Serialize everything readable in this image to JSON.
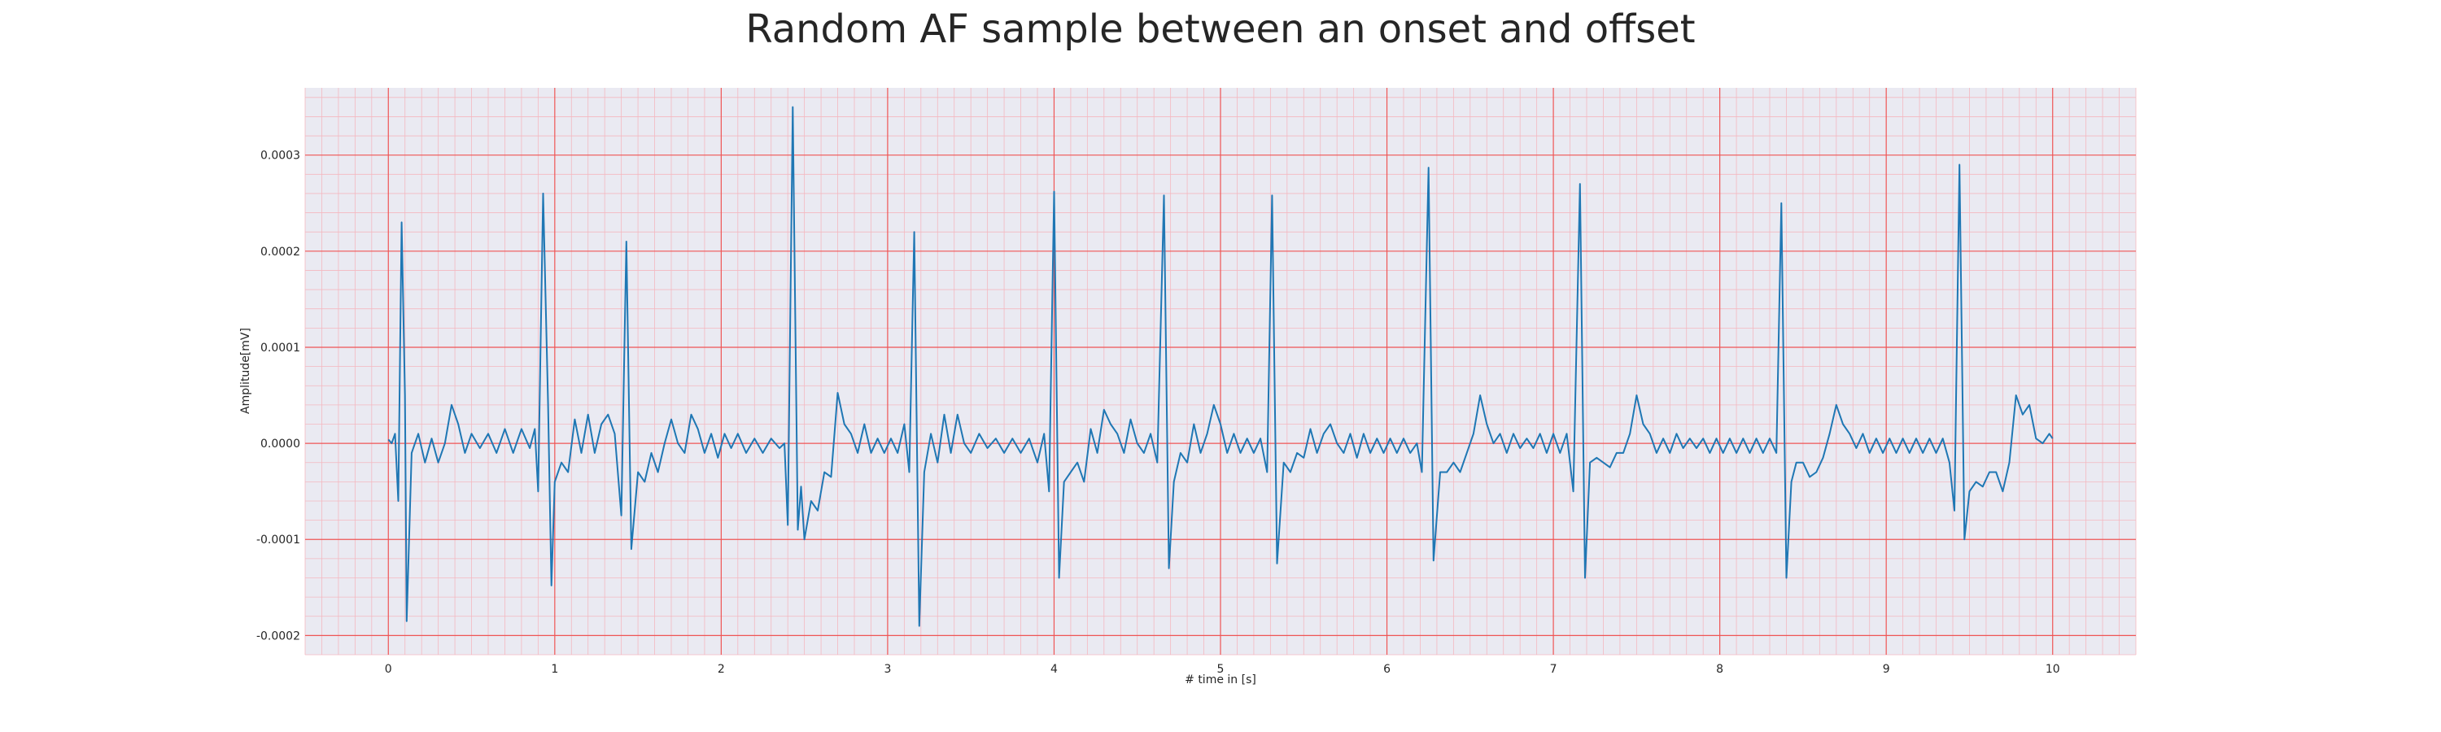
{
  "chart_data": {
    "type": "line",
    "title": "Random AF sample between an onset and offset",
    "xlabel": "# time in [s]",
    "ylabel": "Amplitude[mV]",
    "xlim": [
      -0.5,
      10.5
    ],
    "ylim": [
      -0.00022,
      0.00037
    ],
    "x_ticks": [
      0,
      1,
      2,
      3,
      4,
      5,
      6,
      7,
      8,
      9,
      10
    ],
    "x_tick_labels": [
      "0",
      "1",
      "2",
      "3",
      "4",
      "5",
      "6",
      "7",
      "8",
      "9",
      "10"
    ],
    "y_ticks": [
      -0.0002,
      -0.0001,
      0.0,
      0.0001,
      0.0002,
      0.0003
    ],
    "y_tick_labels": [
      "-0.0002",
      "-0.0001",
      "0.0000",
      "0.0001",
      "0.0002",
      "0.0003"
    ],
    "grid": true,
    "minor_grid": true,
    "colors": {
      "line": "#1f77b4",
      "background": "#eaeaf2",
      "major_grid": "#ef5555",
      "minor_grid": "#f4b8c0"
    },
    "series": [
      {
        "points": [
          [
            0.0,
            4e-06
          ],
          [
            0.02,
            0.0
          ],
          [
            0.04,
            1e-05
          ],
          [
            0.06,
            -6e-05
          ],
          [
            0.08,
            0.00023
          ],
          [
            0.1,
            5e-05
          ],
          [
            0.11,
            -0.000185
          ],
          [
            0.14,
            -1e-05
          ],
          [
            0.18,
            1e-05
          ],
          [
            0.22,
            -2e-05
          ],
          [
            0.26,
            5e-06
          ],
          [
            0.3,
            -2e-05
          ],
          [
            0.34,
            0.0
          ],
          [
            0.38,
            4e-05
          ],
          [
            0.42,
            2e-05
          ],
          [
            0.46,
            -1e-05
          ],
          [
            0.5,
            1e-05
          ],
          [
            0.55,
            -5e-06
          ],
          [
            0.6,
            1e-05
          ],
          [
            0.65,
            -1e-05
          ],
          [
            0.7,
            1.5e-05
          ],
          [
            0.75,
            -1e-05
          ],
          [
            0.8,
            1.5e-05
          ],
          [
            0.85,
            -5e-06
          ],
          [
            0.88,
            1.5e-05
          ],
          [
            0.9,
            -5e-05
          ],
          [
            0.93,
            0.00026
          ],
          [
            0.96,
            4e-05
          ],
          [
            0.98,
            -0.000148
          ],
          [
            1.0,
            -4e-05
          ],
          [
            1.04,
            -2e-05
          ],
          [
            1.08,
            -3e-05
          ],
          [
            1.12,
            2.5e-05
          ],
          [
            1.16,
            -1e-05
          ],
          [
            1.2,
            3e-05
          ],
          [
            1.24,
            -1e-05
          ],
          [
            1.28,
            2e-05
          ],
          [
            1.32,
            3e-05
          ],
          [
            1.36,
            1e-05
          ],
          [
            1.4,
            -7.5e-05
          ],
          [
            1.43,
            0.00021
          ],
          [
            1.46,
            -0.00011
          ],
          [
            1.5,
            -3e-05
          ],
          [
            1.54,
            -4e-05
          ],
          [
            1.58,
            -1e-05
          ],
          [
            1.62,
            -3e-05
          ],
          [
            1.66,
            0.0
          ],
          [
            1.7,
            2.5e-05
          ],
          [
            1.74,
            0.0
          ],
          [
            1.78,
            -1e-05
          ],
          [
            1.82,
            3e-05
          ],
          [
            1.86,
            1.5e-05
          ],
          [
            1.9,
            -1e-05
          ],
          [
            1.94,
            1e-05
          ],
          [
            1.98,
            -1.5e-05
          ],
          [
            2.02,
            1e-05
          ],
          [
            2.06,
            -5e-06
          ],
          [
            2.1,
            1e-05
          ],
          [
            2.15,
            -1e-05
          ],
          [
            2.2,
            5e-06
          ],
          [
            2.25,
            -1e-05
          ],
          [
            2.3,
            5e-06
          ],
          [
            2.35,
            -5e-06
          ],
          [
            2.38,
            0.0
          ],
          [
            2.4,
            -8.5e-05
          ],
          [
            2.43,
            0.00035
          ],
          [
            2.46,
            -9e-05
          ],
          [
            2.48,
            -4.5e-05
          ],
          [
            2.5,
            -0.0001
          ],
          [
            2.54,
            -6e-05
          ],
          [
            2.58,
            -7e-05
          ],
          [
            2.62,
            -3e-05
          ],
          [
            2.66,
            -3.5e-05
          ],
          [
            2.7,
            5.26e-05
          ],
          [
            2.74,
            2e-05
          ],
          [
            2.78,
            1e-05
          ],
          [
            2.82,
            -1e-05
          ],
          [
            2.86,
            2e-05
          ],
          [
            2.9,
            -1e-05
          ],
          [
            2.94,
            5e-06
          ],
          [
            2.98,
            -1e-05
          ],
          [
            3.02,
            5e-06
          ],
          [
            3.06,
            -1e-05
          ],
          [
            3.1,
            2e-05
          ],
          [
            3.13,
            -3e-05
          ],
          [
            3.16,
            0.00022
          ],
          [
            3.19,
            -0.00019
          ],
          [
            3.22,
            -3e-05
          ],
          [
            3.26,
            1e-05
          ],
          [
            3.3,
            -2e-05
          ],
          [
            3.34,
            3e-05
          ],
          [
            3.38,
            -1e-05
          ],
          [
            3.42,
            3e-05
          ],
          [
            3.46,
            0.0
          ],
          [
            3.5,
            -1e-05
          ],
          [
            3.55,
            1e-05
          ],
          [
            3.6,
            -5e-06
          ],
          [
            3.65,
            5e-06
          ],
          [
            3.7,
            -1e-05
          ],
          [
            3.75,
            5e-06
          ],
          [
            3.8,
            -1e-05
          ],
          [
            3.85,
            5e-06
          ],
          [
            3.9,
            -2e-05
          ],
          [
            3.94,
            1e-05
          ],
          [
            3.97,
            -5e-05
          ],
          [
            4.0,
            0.000262
          ],
          [
            4.03,
            -0.00014
          ],
          [
            4.06,
            -4e-05
          ],
          [
            4.1,
            -3e-05
          ],
          [
            4.14,
            -2e-05
          ],
          [
            4.18,
            -4e-05
          ],
          [
            4.22,
            1.5e-05
          ],
          [
            4.26,
            -1e-05
          ],
          [
            4.3,
            3.5e-05
          ],
          [
            4.34,
            2e-05
          ],
          [
            4.38,
            1e-05
          ],
          [
            4.42,
            -1e-05
          ],
          [
            4.46,
            2.5e-05
          ],
          [
            4.5,
            0.0
          ],
          [
            4.54,
            -1e-05
          ],
          [
            4.58,
            1e-05
          ],
          [
            4.62,
            -2e-05
          ],
          [
            4.66,
            0.000258
          ],
          [
            4.69,
            -0.00013
          ],
          [
            4.72,
            -4e-05
          ],
          [
            4.76,
            -1e-05
          ],
          [
            4.8,
            -2e-05
          ],
          [
            4.84,
            2e-05
          ],
          [
            4.88,
            -1e-05
          ],
          [
            4.92,
            1e-05
          ],
          [
            4.96,
            4e-05
          ],
          [
            5.0,
            2e-05
          ],
          [
            5.04,
            -1e-05
          ],
          [
            5.08,
            1e-05
          ],
          [
            5.12,
            -1e-05
          ],
          [
            5.16,
            5e-06
          ],
          [
            5.2,
            -1e-05
          ],
          [
            5.24,
            5e-06
          ],
          [
            5.28,
            -3e-05
          ],
          [
            5.31,
            0.000258
          ],
          [
            5.34,
            -0.000125
          ],
          [
            5.38,
            -2e-05
          ],
          [
            5.42,
            -3e-05
          ],
          [
            5.46,
            -1e-05
          ],
          [
            5.5,
            -1.5e-05
          ],
          [
            5.54,
            1.5e-05
          ],
          [
            5.58,
            -1e-05
          ],
          [
            5.62,
            1e-05
          ],
          [
            5.66,
            2e-05
          ],
          [
            5.7,
            0.0
          ],
          [
            5.74,
            -1e-05
          ],
          [
            5.78,
            1e-05
          ],
          [
            5.82,
            -1.5e-05
          ],
          [
            5.86,
            1e-05
          ],
          [
            5.9,
            -1e-05
          ],
          [
            5.94,
            5e-06
          ],
          [
            5.98,
            -1e-05
          ],
          [
            6.02,
            5e-06
          ],
          [
            6.06,
            -1e-05
          ],
          [
            6.1,
            5e-06
          ],
          [
            6.14,
            -1e-05
          ],
          [
            6.18,
            0.0
          ],
          [
            6.21,
            -3e-05
          ],
          [
            6.25,
            0.000287
          ],
          [
            6.28,
            -0.000122
          ],
          [
            6.32,
            -3e-05
          ],
          [
            6.36,
            -3e-05
          ],
          [
            6.4,
            -2e-05
          ],
          [
            6.44,
            -3e-05
          ],
          [
            6.48,
            -1e-05
          ],
          [
            6.52,
            1e-05
          ],
          [
            6.56,
            5e-05
          ],
          [
            6.6,
            2e-05
          ],
          [
            6.64,
            0.0
          ],
          [
            6.68,
            1e-05
          ],
          [
            6.72,
            -1e-05
          ],
          [
            6.76,
            1e-05
          ],
          [
            6.8,
            -5e-06
          ],
          [
            6.84,
            5e-06
          ],
          [
            6.88,
            -5e-06
          ],
          [
            6.92,
            1e-05
          ],
          [
            6.96,
            -1e-05
          ],
          [
            7.0,
            1e-05
          ],
          [
            7.04,
            -1e-05
          ],
          [
            7.08,
            1e-05
          ],
          [
            7.12,
            -5e-05
          ],
          [
            7.16,
            0.00027
          ],
          [
            7.19,
            -0.00014
          ],
          [
            7.22,
            -2e-05
          ],
          [
            7.26,
            -1.5e-05
          ],
          [
            7.3,
            -2e-05
          ],
          [
            7.34,
            -2.5e-05
          ],
          [
            7.38,
            -1e-05
          ],
          [
            7.42,
            -1e-05
          ],
          [
            7.46,
            1e-05
          ],
          [
            7.5,
            5e-05
          ],
          [
            7.54,
            2e-05
          ],
          [
            7.58,
            1e-05
          ],
          [
            7.62,
            -1e-05
          ],
          [
            7.66,
            5e-06
          ],
          [
            7.7,
            -1e-05
          ],
          [
            7.74,
            1e-05
          ],
          [
            7.78,
            -5e-06
          ],
          [
            7.82,
            5e-06
          ],
          [
            7.86,
            -5e-06
          ],
          [
            7.9,
            5e-06
          ],
          [
            7.94,
            -1e-05
          ],
          [
            7.98,
            5e-06
          ],
          [
            8.02,
            -1e-05
          ],
          [
            8.06,
            5e-06
          ],
          [
            8.1,
            -1e-05
          ],
          [
            8.14,
            5e-06
          ],
          [
            8.18,
            -1e-05
          ],
          [
            8.22,
            5e-06
          ],
          [
            8.26,
            -1e-05
          ],
          [
            8.3,
            5e-06
          ],
          [
            8.34,
            -1e-05
          ],
          [
            8.37,
            0.00025
          ],
          [
            8.4,
            -0.00014
          ],
          [
            8.43,
            -4e-05
          ],
          [
            8.46,
            -2e-05
          ],
          [
            8.5,
            -2e-05
          ],
          [
            8.54,
            -3.5e-05
          ],
          [
            8.58,
            -3e-05
          ],
          [
            8.62,
            -1.5e-05
          ],
          [
            8.66,
            1e-05
          ],
          [
            8.7,
            4e-05
          ],
          [
            8.74,
            2e-05
          ],
          [
            8.78,
            1e-05
          ],
          [
            8.82,
            -5e-06
          ],
          [
            8.86,
            1e-05
          ],
          [
            8.9,
            -1e-05
          ],
          [
            8.94,
            5e-06
          ],
          [
            8.98,
            -1e-05
          ],
          [
            9.02,
            5e-06
          ],
          [
            9.06,
            -1e-05
          ],
          [
            9.1,
            5e-06
          ],
          [
            9.14,
            -1e-05
          ],
          [
            9.18,
            5e-06
          ],
          [
            9.22,
            -1e-05
          ],
          [
            9.26,
            5e-06
          ],
          [
            9.3,
            -1e-05
          ],
          [
            9.34,
            5e-06
          ],
          [
            9.38,
            -2e-05
          ],
          [
            9.41,
            -7e-05
          ],
          [
            9.44,
            0.00029
          ],
          [
            9.47,
            -0.0001
          ],
          [
            9.5,
            -5e-05
          ],
          [
            9.54,
            -4e-05
          ],
          [
            9.58,
            -4.5e-05
          ],
          [
            9.62,
            -3e-05
          ],
          [
            9.66,
            -3e-05
          ],
          [
            9.7,
            -5e-05
          ],
          [
            9.74,
            -2e-05
          ],
          [
            9.78,
            5e-05
          ],
          [
            9.82,
            3e-05
          ],
          [
            9.86,
            4e-05
          ],
          [
            9.9,
            5e-06
          ],
          [
            9.94,
            0.0
          ],
          [
            9.98,
            1e-05
          ],
          [
            10.0,
            5e-06
          ]
        ]
      }
    ]
  }
}
